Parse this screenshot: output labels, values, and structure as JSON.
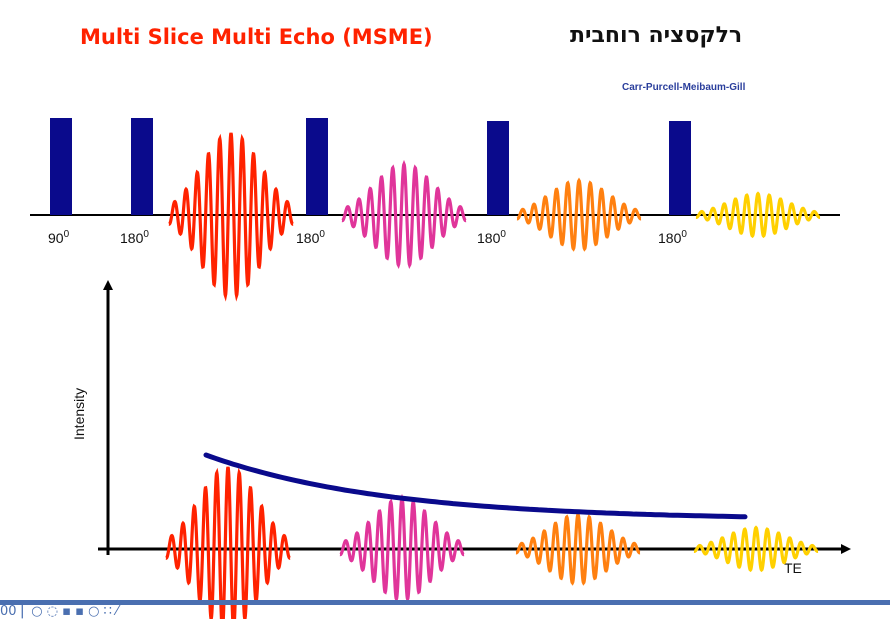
{
  "title_en": "Multi Slice Multi Echo (MSME)",
  "title_he": "רלקסציה רוחבית",
  "subtitle": "Carr-Purcell-Meibaum-Gill",
  "pulses": [
    {
      "angle": "90",
      "exp": "0"
    },
    {
      "angle": "180",
      "exp": "0"
    },
    {
      "angle": "180",
      "exp": "0"
    },
    {
      "angle": "180",
      "exp": "0"
    },
    {
      "angle": "180",
      "exp": "0"
    }
  ],
  "echo_colors": [
    "#ff2200",
    "#e0359a",
    "#ff8010",
    "#ffd000"
  ],
  "echo_amplitudes": [
    1.0,
    0.62,
    0.42,
    0.26
  ],
  "curve_color": "#0a0a8c",
  "pulse_color": "#0a0a8c",
  "title_color": "#ff2200",
  "subtitle_color": "#2a3e9c",
  "bottom_bar_color": "#4a6fb0",
  "graph": {
    "ylabel": "Intensity",
    "xlabel": "TE"
  },
  "footer_text": "00 ⎢ ○ ◌ ▪ ▪ ○ ∷ ⁄"
}
